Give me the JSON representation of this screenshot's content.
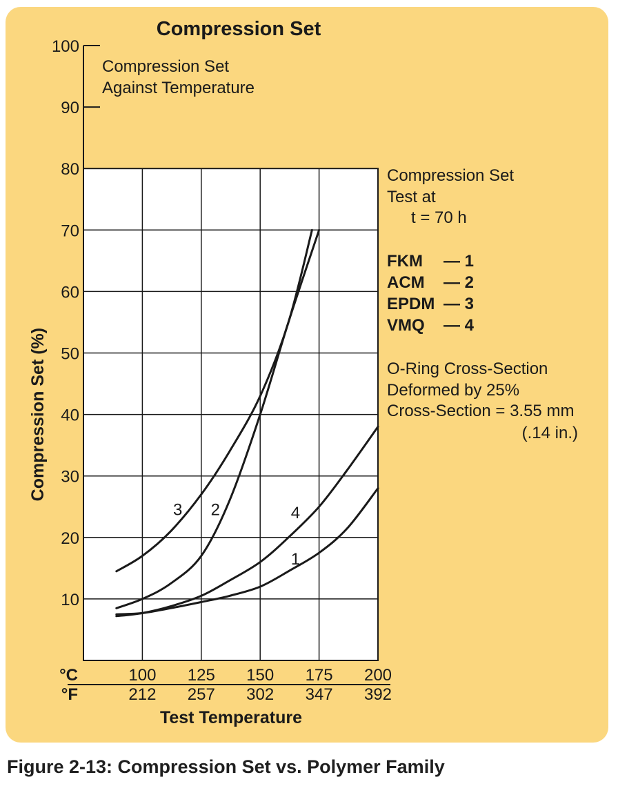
{
  "chart_data": {
    "type": "line",
    "title": "Compression Set",
    "subtitle": [
      "Compression Set",
      "Against Temperature"
    ],
    "ylabel": "Compression Set (%)",
    "xlabel": "Test Temperature",
    "ylim": [
      0,
      100
    ],
    "xlim": [
      75,
      200
    ],
    "y_ticks": [
      10,
      20,
      30,
      40,
      50,
      60,
      70,
      80,
      90,
      100
    ],
    "x_unit_c": "°C",
    "x_unit_f": "°F",
    "x_ticks_c": [
      "100",
      "125",
      "150",
      "175",
      "200"
    ],
    "x_ticks_f": [
      "212",
      "257",
      "302",
      "347",
      "392"
    ],
    "grid": true,
    "grid_ylim": [
      0,
      80
    ],
    "series": [
      {
        "name": "FKM",
        "label": "1",
        "x": [
          89,
          100,
          112,
          125,
          137,
          150,
          162,
          175,
          187,
          200
        ],
        "values": [
          7.5,
          7.7,
          8.5,
          9.5,
          10.5,
          12,
          14.5,
          17.5,
          21.5,
          28
        ]
      },
      {
        "name": "ACM",
        "label": "2",
        "x": [
          89,
          100,
          112,
          125,
          137,
          150,
          162,
          175
        ],
        "values": [
          8.5,
          10,
          12.5,
          17,
          26,
          40,
          55,
          70
        ]
      },
      {
        "name": "EPDM",
        "label": "3",
        "x": [
          89,
          100,
          112,
          125,
          137,
          150,
          162,
          172
        ],
        "values": [
          14.5,
          17,
          21,
          27,
          34,
          43,
          55,
          70
        ]
      },
      {
        "name": "VMQ",
        "label": "4",
        "x": [
          89,
          100,
          112,
          125,
          137,
          150,
          162,
          175,
          187,
          200
        ],
        "values": [
          7.2,
          7.7,
          8.8,
          10.5,
          13,
          16,
          20,
          25,
          31,
          38
        ]
      }
    ],
    "curve_label_pos": [
      {
        "label": "3",
        "x": 115,
        "y": 24.5
      },
      {
        "label": "2",
        "x": 131,
        "y": 24.5
      },
      {
        "label": "4",
        "x": 165,
        "y": 24
      },
      {
        "label": "1",
        "x": 165,
        "y": 16.5
      }
    ],
    "test_info": [
      "Compression Set",
      "Test at",
      "t = 70 h"
    ],
    "legend": [
      {
        "name": "FKM",
        "dash": "— 1"
      },
      {
        "name": "ACM",
        "dash": "— 2"
      },
      {
        "name": "EPDM",
        "dash": "— 3"
      },
      {
        "name": "VMQ",
        "dash": "— 4"
      }
    ],
    "notes": [
      "O-Ring Cross-Section",
      "Deformed by 25%",
      "Cross-Section = 3.55 mm",
      "(.14 in.)"
    ]
  },
  "caption": "Figure 2-13: Compression Set vs. Polymer Family",
  "colors": {
    "panel": "#fbd77f",
    "plot_bg": "#ffffff",
    "ink": "#1a1a1a"
  }
}
